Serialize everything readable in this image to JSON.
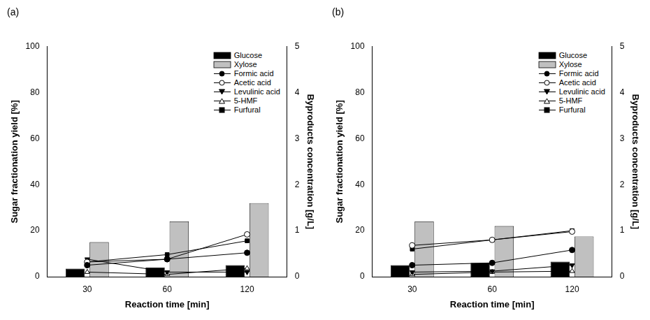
{
  "chart_data": [
    {
      "type": "bar",
      "title": "(a)",
      "categories": [
        "30",
        "60",
        "120"
      ],
      "x_label": "Reaction time [min]",
      "y_label": "Sugar fractionation yield [%]",
      "y2_label": "Byproducts concentration [g/L]",
      "ylim": [
        0,
        100
      ],
      "yticks": [
        0,
        20,
        40,
        60,
        80,
        100
      ],
      "y2lim": [
        0,
        5
      ],
      "y2ticks": [
        0,
        1,
        2,
        3,
        4,
        5
      ],
      "grid": false,
      "legend": "top-right",
      "series": [
        {
          "name": "Glucose",
          "type": "bar",
          "color": "#000000",
          "values": [
            3.5,
            4,
            5
          ]
        },
        {
          "name": "Xylose",
          "type": "bar",
          "color": "#c0c0c0",
          "values": [
            15,
            24,
            32
          ]
        },
        {
          "name": "Formic acid",
          "type": "line",
          "axis": "y2",
          "color": "#000000",
          "marker": "filled-circle",
          "values": [
            0.25,
            0.38,
            0.52
          ]
        },
        {
          "name": "Acetic acid",
          "type": "line",
          "axis": "y2",
          "color": "#000000",
          "marker": "open-circle",
          "values": [
            0.32,
            0.38,
            0.92
          ]
        },
        {
          "name": "Levulinic acid",
          "type": "line",
          "axis": "y2",
          "color": "#000000",
          "marker": "filled-triangle-down",
          "values": [
            0.38,
            0.1,
            0.1
          ]
        },
        {
          "name": "5-HMF",
          "type": "line",
          "axis": "y2",
          "color": "#000000",
          "marker": "open-triangle",
          "values": [
            0.1,
            0.05,
            0.18
          ]
        },
        {
          "name": "Furfural",
          "type": "line",
          "axis": "y2",
          "color": "#000000",
          "marker": "filled-square",
          "values": [
            0.32,
            0.48,
            0.78
          ]
        }
      ]
    },
    {
      "type": "bar",
      "title": "(b)",
      "categories": [
        "30",
        "60",
        "120"
      ],
      "x_label": "Reaction time [min]",
      "y_label": "Sugar fractionation yield [%]",
      "y2_label": "Byproducts concentration [g/L]",
      "ylim": [
        0,
        100
      ],
      "yticks": [
        0,
        20,
        40,
        60,
        80,
        100
      ],
      "y2lim": [
        0,
        5
      ],
      "y2ticks": [
        0,
        1,
        2,
        3,
        4,
        5
      ],
      "grid": false,
      "legend": "top-right",
      "series": [
        {
          "name": "Glucose",
          "type": "bar",
          "color": "#000000",
          "values": [
            5,
            6,
            6.5
          ]
        },
        {
          "name": "Xylose",
          "type": "bar",
          "color": "#c0c0c0",
          "values": [
            24,
            22,
            17.5
          ]
        },
        {
          "name": "Formic acid",
          "type": "line",
          "axis": "y2",
          "color": "#000000",
          "marker": "filled-circle",
          "values": [
            0.25,
            0.3,
            0.58
          ]
        },
        {
          "name": "Acetic acid",
          "type": "line",
          "axis": "y2",
          "color": "#000000",
          "marker": "open-circle",
          "values": [
            0.68,
            0.8,
            0.98
          ]
        },
        {
          "name": "Levulinic acid",
          "type": "line",
          "axis": "y2",
          "color": "#000000",
          "marker": "filled-triangle-down",
          "values": [
            0.1,
            0.12,
            0.25
          ]
        },
        {
          "name": "5-HMF",
          "type": "line",
          "axis": "y2",
          "color": "#000000",
          "marker": "open-triangle",
          "values": [
            0.05,
            0.1,
            0.12
          ]
        },
        {
          "name": "Furfural",
          "type": "line",
          "axis": "y2",
          "color": "#000000",
          "marker": "filled-square",
          "values": [
            0.6,
            0.8,
            1.0
          ]
        }
      ]
    }
  ]
}
